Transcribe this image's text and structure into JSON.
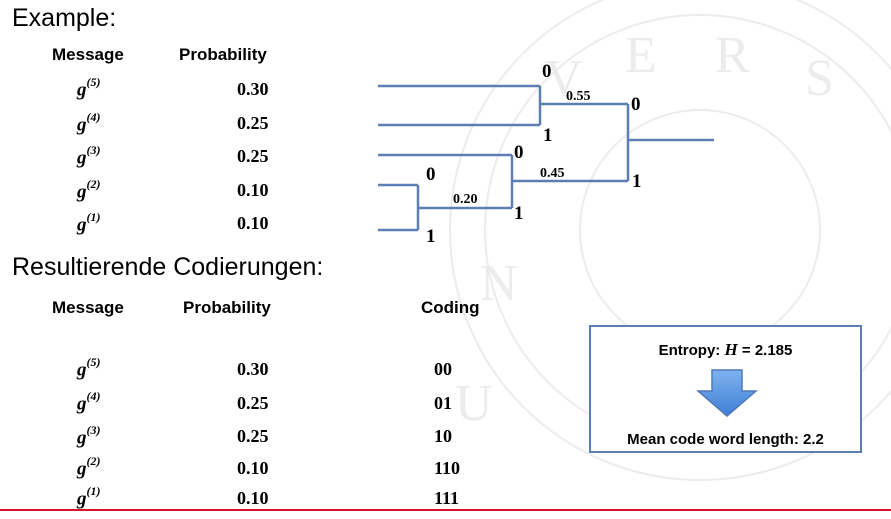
{
  "example_heading": "Example:",
  "top_table": {
    "header_message": "Message",
    "header_probability": "Probability",
    "rows": [
      {
        "msg": "g",
        "sup": "(5)",
        "prob": "0.30"
      },
      {
        "msg": "g",
        "sup": "(4)",
        "prob": "0.25"
      },
      {
        "msg": "g",
        "sup": "(3)",
        "prob": "0.25"
      },
      {
        "msg": "g",
        "sup": "(2)",
        "prob": "0.10"
      },
      {
        "msg": "g",
        "sup": "(1)",
        "prob": "0.10"
      }
    ]
  },
  "tree": {
    "node_values": [
      "0.55",
      "0.45",
      "0.20"
    ],
    "edge_labels": [
      "0",
      "1",
      "0",
      "0",
      "1",
      "0",
      "1",
      "1"
    ],
    "line_color": "#5b7fb5"
  },
  "result_heading": "Resultierende Codierungen:",
  "bottom_table": {
    "header_message": "Message",
    "header_probability": "Probability",
    "header_coding": "Coding",
    "rows": [
      {
        "msg": "g",
        "sup": "(5)",
        "prob": "0.30",
        "code": "00"
      },
      {
        "msg": "g",
        "sup": "(4)",
        "prob": "0.25",
        "code": "01"
      },
      {
        "msg": "g",
        "sup": "(3)",
        "prob": "0.25",
        "code": "10"
      },
      {
        "msg": "g",
        "sup": "(2)",
        "prob": "0.10",
        "code": "110"
      },
      {
        "msg": "g",
        "sup": "(1)",
        "prob": "0.10",
        "code": "111"
      }
    ]
  },
  "entropy_box": {
    "entropy_prefix": "Entropy: ",
    "entropy_symbol": "H",
    "entropy_value": " = 2.185",
    "mean_length": "Mean code word length: 2.2",
    "arrow_icon": "down-arrow-icon",
    "border_color": "#5b7fb5"
  },
  "accent_color": "#d7122b"
}
